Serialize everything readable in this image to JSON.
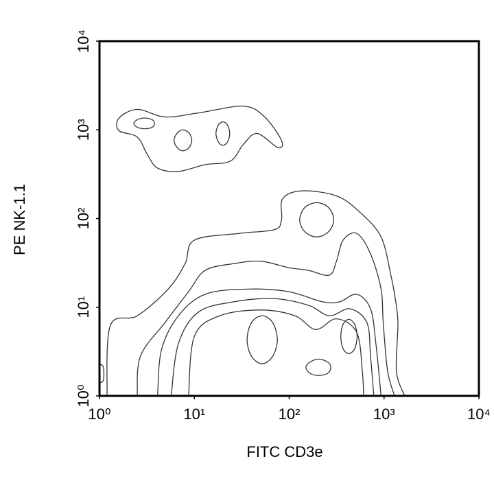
{
  "chart_data": {
    "type": "contour",
    "xlabel": "FITC CD3e",
    "ylabel": "PE NK-1.1",
    "xscale": "log",
    "yscale": "log",
    "xlim": [
      1,
      10000
    ],
    "ylim": [
      1,
      10000
    ],
    "xticks": [
      {
        "value": 1,
        "label": "10⁰"
      },
      {
        "value": 10,
        "label": "10¹"
      },
      {
        "value": 100,
        "label": "10²"
      },
      {
        "value": 1000,
        "label": "10³"
      },
      {
        "value": 10000,
        "label": "10⁴"
      }
    ],
    "yticks": [
      {
        "value": 1,
        "label": "10⁰"
      },
      {
        "value": 10,
        "label": "10¹"
      },
      {
        "value": 100,
        "label": "10²"
      },
      {
        "value": 1000,
        "label": "10³"
      },
      {
        "value": 10000,
        "label": "10⁴"
      }
    ],
    "color": "#333333",
    "contours": [
      {
        "closed": true,
        "x": [
          1.6,
          2.5,
          4.9,
          11,
          33,
          55,
          83,
          76,
          46,
          33,
          24,
          13,
          6.8,
          4.1,
          3.2,
          2.5,
          1.6
        ],
        "y": [
          1350,
          1700,
          1400,
          1550,
          1850,
          1400,
          760,
          630,
          910,
          690,
          445,
          405,
          340,
          370,
          525,
          830,
          980
        ]
      },
      {
        "closed": true,
        "x": [
          3.8,
          3.6,
          3.0,
          2.5,
          2.3,
          2.5,
          3.0,
          3.6
        ],
        "y": [
          1180,
          1300,
          1360,
          1300,
          1180,
          1070,
          1030,
          1070
        ]
      },
      {
        "closed": true,
        "x": [
          9.4,
          8.8,
          7.6,
          6.6,
          6.1,
          6.6,
          7.6,
          8.8
        ],
        "y": [
          760,
          920,
          1000,
          920,
          760,
          630,
          580,
          630
        ]
      },
      {
        "closed": true,
        "x": [
          23.6,
          22.4,
          20,
          17.9,
          16.9,
          17.9,
          20,
          22.4
        ],
        "y": [
          910,
          1130,
          1230,
          1130,
          910,
          730,
          670,
          730
        ]
      },
      {
        "closed": false,
        "x": [
          1.2,
          1.3,
          2.5,
          5.3,
          8.0,
          10,
          30,
          70,
          83,
          85,
          135,
          315,
          560,
          930,
          1180,
          1290,
          1400,
          1350,
          1650
        ],
        "y": [
          1,
          6.2,
          8.0,
          16,
          31,
          57,
          68,
          75,
          97,
          166,
          205,
          180,
          117,
          62,
          23,
          14,
          6.7,
          1.9,
          1
        ]
      },
      {
        "closed": false,
        "x": [
          2.5,
          2.7,
          4.9,
          8.7,
          13,
          26,
          50,
          98,
          160,
          265,
          315,
          370,
          515,
          720,
          930,
          980,
          1090,
          1290
        ],
        "y": [
          1,
          2.8,
          6.7,
          15,
          26,
          31,
          33,
          28,
          26,
          23,
          33,
          57,
          68,
          40,
          16,
          6.7,
          1.9,
          1
        ]
      },
      {
        "closed": true,
        "x": [
          295,
          260,
          195,
          146,
          129,
          146,
          195,
          260
        ],
        "y": [
          97,
          133,
          151,
          133,
          97,
          71,
          62,
          71
        ]
      },
      {
        "closed": false,
        "x": [
          4.1,
          4.5,
          6.8,
          13,
          36,
          98,
          225,
          340,
          515,
          720,
          820,
          930
        ],
        "y": [
          1,
          3.3,
          8.0,
          14,
          16,
          15,
          11.5,
          11.5,
          14,
          9.6,
          3.9,
          1
        ]
      },
      {
        "closed": false,
        "x": [
          5.7,
          6.8,
          11,
          26,
          70,
          160,
          265,
          435,
          660,
          720,
          780
        ],
        "y": [
          1,
          3.9,
          8.8,
          11.5,
          12.5,
          10.5,
          8.0,
          9.6,
          6.7,
          2.8,
          1
        ]
      },
      {
        "closed": false,
        "x": [
          8.7,
          10,
          18.5,
          50,
          115,
          190,
          315,
          515,
          590,
          610
        ],
        "y": [
          1,
          4.7,
          8.0,
          9.3,
          8.0,
          5.6,
          7.4,
          5.2,
          1.9,
          1
        ]
      },
      {
        "closed": true,
        "x": [
          75,
          67,
          52,
          40,
          36,
          40,
          52,
          67
        ],
        "y": [
          4.3,
          6.7,
          8.0,
          6.7,
          4.3,
          2.8,
          2.3,
          2.8
        ]
      },
      {
        "closed": true,
        "x": [
          520,
          490,
          425,
          370,
          350,
          370,
          425,
          490
        ],
        "y": [
          4.7,
          6.4,
          7.3,
          6.4,
          4.7,
          3.4,
          3.0,
          3.4
        ]
      },
      {
        "closed": true,
        "x": [
          275,
          255,
          205,
          165,
          150,
          165,
          205,
          255
        ],
        "y": [
          2.1,
          2.4,
          2.6,
          2.4,
          2.1,
          1.8,
          1.7,
          1.8
        ]
      },
      {
        "closed": false,
        "x": [
          1,
          1.1,
          1.1,
          1
        ],
        "y": [
          2.3,
          2.1,
          1.5,
          1.4
        ]
      }
    ]
  }
}
